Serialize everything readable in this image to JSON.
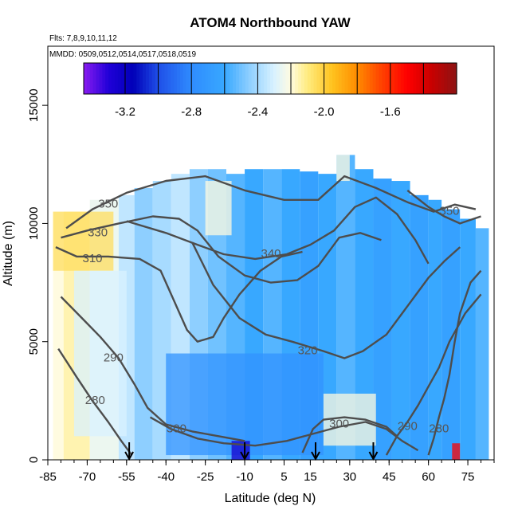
{
  "chart_data": {
    "type": "heatmap",
    "title": "ATOM4 Northbound YAW",
    "subtitle_flights": "Flts: 7,8,9,10,11,12",
    "subtitle_dates": "MMDD: 0509,0512,0514,0517,0518,0519",
    "xlabel": "Latitude (deg N)",
    "ylabel": "Altitude (m)",
    "xlim": [
      -85,
      85
    ],
    "ylim": [
      0,
      17500
    ],
    "x_ticks": [
      -85,
      -70,
      -55,
      -40,
      -25,
      -10,
      5,
      15,
      30,
      45,
      60,
      75
    ],
    "x_tick_labels": [
      "-85",
      "-70",
      "-55",
      "-40",
      "-25",
      "-10",
      "5",
      "15",
      "30",
      "45",
      "60",
      "75"
    ],
    "y_ticks": [
      0,
      5000,
      10000,
      15000
    ],
    "y_tick_labels": [
      "0",
      "5000",
      "10000",
      "15000"
    ],
    "colorbar": {
      "range": [
        -3.45,
        -1.2
      ],
      "ticks": [
        -3.2,
        -2.8,
        -2.4,
        -2.0,
        -1.6
      ],
      "tick_labels": [
        "-3.2",
        "-2.8",
        "-2.4",
        "-2.0",
        "-1.6"
      ],
      "dividers": [
        -3.2,
        -3.0,
        -2.8,
        -2.6,
        -2.4,
        -2.2,
        -2.0,
        -1.8,
        -1.6,
        -1.4
      ],
      "stops": [
        {
          "v": -3.45,
          "c": "#8a1cf0"
        },
        {
          "v": -3.3,
          "c": "#2000d8"
        },
        {
          "v": -3.15,
          "c": "#0000b8"
        },
        {
          "v": -3.0,
          "c": "#1f4fe8"
        },
        {
          "v": -2.8,
          "c": "#2f8cff"
        },
        {
          "v": -2.6,
          "c": "#38a8ff"
        },
        {
          "v": -2.45,
          "c": "#8ecfff"
        },
        {
          "v": -2.3,
          "c": "#d9f2ff"
        },
        {
          "v": -2.2,
          "c": "#fffbe0"
        },
        {
          "v": -2.1,
          "c": "#ffec80"
        },
        {
          "v": -1.95,
          "c": "#ffc21e"
        },
        {
          "v": -1.8,
          "c": "#ff8c00"
        },
        {
          "v": -1.65,
          "c": "#ff4000"
        },
        {
          "v": -1.5,
          "c": "#ff0000"
        },
        {
          "v": -1.35,
          "c": "#c80000"
        },
        {
          "v": -1.2,
          "c": "#8c1414"
        }
      ]
    },
    "heatmap_columns": [
      {
        "x0": -83,
        "x1": -79,
        "ymax": 10500,
        "v": -2.2
      },
      {
        "x0": -79,
        "x1": -69,
        "ymax": 10500,
        "v": -2.15
      },
      {
        "x0": -69,
        "x1": -58,
        "ymax": 11000,
        "v": -2.25
      },
      {
        "x0": -58,
        "x1": -52,
        "ymax": 11200,
        "v": -2.35
      },
      {
        "x0": -52,
        "x1": -45,
        "ymax": 11500,
        "v": -2.45
      },
      {
        "x0": -45,
        "x1": -38,
        "ymax": 11800,
        "v": -2.4
      },
      {
        "x0": -38,
        "x1": -31,
        "ymax": 12100,
        "v": -2.35
      },
      {
        "x0": -31,
        "x1": -24,
        "ymax": 12300,
        "v": -2.45
      },
      {
        "x0": -24,
        "x1": -17,
        "ymax": 12300,
        "v": -2.5
      },
      {
        "x0": -17,
        "x1": -10,
        "ymax": 12100,
        "v": -2.55
      },
      {
        "x0": -10,
        "x1": -3,
        "ymax": 12300,
        "v": -2.6
      },
      {
        "x0": -3,
        "x1": 4,
        "ymax": 12300,
        "v": -2.55
      },
      {
        "x0": 4,
        "x1": 11,
        "ymax": 12300,
        "v": -2.6
      },
      {
        "x0": 11,
        "x1": 18,
        "ymax": 12200,
        "v": -2.65
      },
      {
        "x0": 18,
        "x1": 25,
        "ymax": 12100,
        "v": -2.6
      },
      {
        "x0": 25,
        "x1": 32,
        "ymax": 12900,
        "v": -2.55
      },
      {
        "x0": 32,
        "x1": 39,
        "ymax": 12300,
        "v": -2.6
      },
      {
        "x0": 39,
        "x1": 46,
        "ymax": 11900,
        "v": -2.65
      },
      {
        "x0": 46,
        "x1": 53,
        "ymax": 11800,
        "v": -2.6
      },
      {
        "x0": 53,
        "x1": 60,
        "ymax": 11200,
        "v": -2.65
      },
      {
        "x0": 60,
        "x1": 65,
        "ymax": 11000,
        "v": -2.6
      },
      {
        "x0": 65,
        "x1": 72,
        "ymax": 10600,
        "v": -2.65
      },
      {
        "x0": 72,
        "x1": 78,
        "ymax": 10200,
        "v": -2.6
      },
      {
        "x0": 78,
        "x1": 83,
        "ymax": 9800,
        "v": -2.55
      }
    ],
    "heatmap_features": [
      {
        "x0": -83,
        "x1": -60,
        "y0": 8000,
        "y1": 10500,
        "v": -2.05
      },
      {
        "x0": -75,
        "x1": -55,
        "y0": 1000,
        "y1": 8000,
        "v": -2.3
      },
      {
        "x0": -40,
        "x1": 20,
        "y0": 200,
        "y1": 4500,
        "v": -2.75
      },
      {
        "x0": 20,
        "x1": 40,
        "y0": 600,
        "y1": 2800,
        "v": -2.2
      },
      {
        "x0": -15,
        "x1": -8,
        "y0": 0,
        "y1": 800,
        "v": -3.25
      },
      {
        "x0": 69,
        "x1": 72,
        "y0": 0,
        "y1": 700,
        "v": -1.5
      },
      {
        "x0": -25,
        "x1": -15,
        "y0": 9500,
        "y1": 11800,
        "v": -2.2
      },
      {
        "x0": 25,
        "x1": 30,
        "y0": 11800,
        "y1": 12900,
        "v": -2.2
      }
    ],
    "contours": [
      {
        "label": "350",
        "label_pos": [
          -62,
          10800
        ],
        "points": [
          [
            -78,
            9800
          ],
          [
            -68,
            10600
          ],
          [
            -55,
            11300
          ],
          [
            -40,
            11800
          ],
          [
            -25,
            12000
          ],
          [
            -10,
            11400
          ],
          [
            5,
            11000
          ],
          [
            18,
            11000
          ],
          [
            28,
            12000
          ],
          [
            40,
            11500
          ],
          [
            52,
            10900
          ],
          [
            62,
            10500
          ],
          [
            70,
            10800
          ],
          [
            78,
            10600
          ]
        ]
      },
      {
        "label": "330",
        "label_pos": [
          -66,
          9600
        ],
        "points": [
          [
            -80,
            9400
          ],
          [
            -70,
            9700
          ],
          [
            -58,
            10000
          ],
          [
            -45,
            10300
          ],
          [
            -35,
            10200
          ],
          [
            -28,
            9700
          ],
          [
            -20,
            8600
          ],
          [
            -10,
            7800
          ],
          [
            0,
            7500
          ],
          [
            10,
            7600
          ],
          [
            18,
            8200
          ],
          [
            26,
            9400
          ],
          [
            34,
            9600
          ],
          [
            42,
            9300
          ]
        ]
      },
      {
        "label": "310",
        "label_pos": [
          -68,
          8500
        ],
        "points": [
          [
            -82,
            9000
          ],
          [
            -74,
            8600
          ],
          [
            -62,
            8600
          ],
          [
            -50,
            8500
          ],
          [
            -42,
            8000
          ],
          [
            -36,
            6500
          ],
          [
            -32,
            5500
          ],
          [
            -28,
            5000
          ],
          [
            -22,
            5200
          ],
          [
            -18,
            6000
          ],
          [
            -12,
            7000
          ],
          [
            -4,
            8000
          ],
          [
            4,
            8600
          ],
          [
            12,
            8800
          ]
        ]
      },
      {
        "label": "340",
        "label_pos": [
          0,
          8700
        ],
        "points": [
          [
            -55,
            10100
          ],
          [
            -40,
            9600
          ],
          [
            -28,
            9100
          ],
          [
            -18,
            8700
          ],
          [
            -6,
            8500
          ],
          [
            6,
            8700
          ],
          [
            15,
            9100
          ],
          [
            24,
            9700
          ],
          [
            32,
            10700
          ],
          [
            40,
            11100
          ],
          [
            48,
            10400
          ],
          [
            55,
            9300
          ],
          [
            60,
            8300
          ]
        ]
      },
      {
        "label": "320",
        "label_pos": [
          14,
          4600
        ],
        "points": [
          [
            -30,
            9200
          ],
          [
            -22,
            7400
          ],
          [
            -12,
            6000
          ],
          [
            -2,
            5300
          ],
          [
            8,
            5000
          ],
          [
            20,
            4600
          ],
          [
            28,
            4300
          ],
          [
            35,
            4600
          ],
          [
            44,
            5300
          ],
          [
            52,
            6500
          ],
          [
            60,
            7700
          ],
          [
            66,
            8400
          ],
          [
            72,
            9000
          ]
        ]
      },
      {
        "label": "290",
        "label_pos": [
          -60,
          4300
        ],
        "points": [
          [
            -80,
            6900
          ],
          [
            -72,
            6000
          ],
          [
            -65,
            5200
          ],
          [
            -58,
            4300
          ],
          [
            -52,
            3200
          ],
          [
            -47,
            2200
          ],
          [
            -40,
            1500
          ],
          [
            -30,
            1200
          ],
          [
            -20,
            1000
          ],
          [
            -10,
            800
          ]
        ]
      },
      {
        "label": "280",
        "label_pos": [
          -67,
          2500
        ],
        "points": [
          [
            -81,
            4700
          ],
          [
            -74,
            3500
          ],
          [
            -68,
            2500
          ],
          [
            -62,
            1600
          ],
          [
            -57,
            800
          ],
          [
            -53,
            200
          ]
        ]
      },
      {
        "label": "300",
        "label_pos": [
          -36,
          1300
        ],
        "points": [
          [
            -46,
            1800
          ],
          [
            -38,
            1300
          ],
          [
            -28,
            900
          ],
          [
            -18,
            700
          ],
          [
            -6,
            600
          ],
          [
            6,
            800
          ],
          [
            16,
            1100
          ],
          [
            26,
            1400
          ],
          [
            36,
            1600
          ],
          [
            44,
            1300
          ],
          [
            50,
            800
          ],
          [
            56,
            400
          ]
        ]
      },
      {
        "label": "300",
        "label_pos": [
          26,
          1500
        ],
        "points": [
          [
            12,
            300
          ],
          [
            16,
            1300
          ],
          [
            20,
            1700
          ],
          [
            28,
            1800
          ],
          [
            36,
            1700
          ],
          [
            44,
            1400
          ],
          [
            48,
            1000
          ]
        ]
      },
      {
        "label": "290",
        "label_pos": [
          52,
          1400
        ],
        "points": [
          [
            44,
            200
          ],
          [
            48,
            1000
          ],
          [
            52,
            1600
          ],
          [
            56,
            2300
          ],
          [
            60,
            3100
          ],
          [
            64,
            3900
          ],
          [
            68,
            5000
          ],
          [
            74,
            6200
          ],
          [
            80,
            7000
          ]
        ]
      },
      {
        "label": "280",
        "label_pos": [
          64,
          1300
        ],
        "points": [
          [
            60,
            200
          ],
          [
            62,
            900
          ],
          [
            64,
            1800
          ],
          [
            66,
            2600
          ],
          [
            68,
            3600
          ],
          [
            70,
            5000
          ],
          [
            72,
            6200
          ],
          [
            76,
            7500
          ],
          [
            80,
            8000
          ]
        ]
      },
      {
        "label": "350",
        "label_pos": [
          68,
          10500
        ],
        "points": [
          [
            52,
            11400
          ],
          [
            60,
            10700
          ],
          [
            66,
            10300
          ],
          [
            72,
            10000
          ],
          [
            80,
            10300
          ]
        ]
      }
    ],
    "flight_markers_lat": [
      -54,
      -10,
      17,
      39
    ],
    "contour_labels_visible": [
      "350",
      "330",
      "310",
      "340",
      "320",
      "290",
      "280",
      "300",
      "300",
      "290",
      "280",
      "350"
    ]
  }
}
